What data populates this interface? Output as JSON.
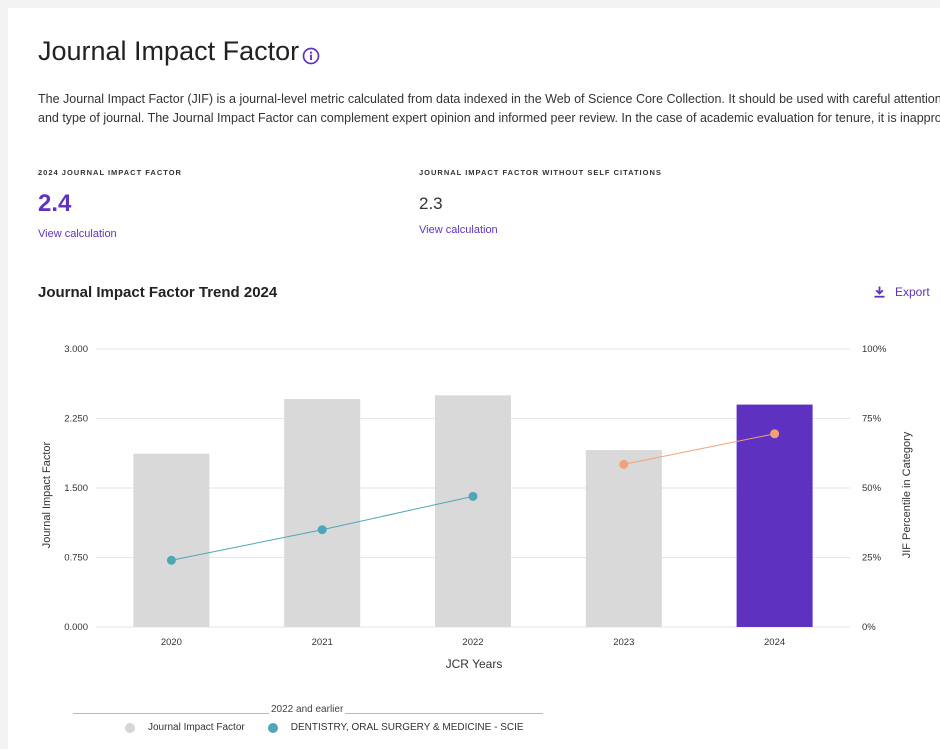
{
  "page": {
    "title": "Journal Impact Factor",
    "description_line1": "The Journal Impact Factor (JIF) is a journal-level metric calculated from data indexed in the Web of Science Core Collection. It should be used with careful attention to",
    "description_line2": "and type of journal. The Journal Impact Factor can complement expert opinion and informed peer review. In the case of academic evaluation for tenure, it is inapprop"
  },
  "metrics": {
    "jif": {
      "label": "2024 JOURNAL IMPACT FACTOR",
      "value": "2.4",
      "link": "View calculation"
    },
    "jif_no_self": {
      "label": "JOURNAL IMPACT FACTOR WITHOUT SELF CITATIONS",
      "value": "2.3",
      "link": "View calculation"
    }
  },
  "chart_section": {
    "title": "Journal Impact Factor Trend 2024",
    "export_label": "Export"
  },
  "legend": {
    "group_label": "2022 and earlier",
    "items": [
      {
        "label": "Journal Impact Factor",
        "color": "#d6d6d6"
      },
      {
        "label": "DENTISTRY, ORAL SURGERY & MEDICINE - SCIE",
        "color": "#4fa6b8"
      }
    ]
  },
  "colors": {
    "accent": "#5e33bf",
    "bar_default": "#d9d9d9",
    "bar_highlight": "#5e31c0",
    "line_early": "#4fa6b8",
    "line_late": "#f4a074"
  },
  "chart_data": {
    "type": "bar",
    "categories": [
      "2020",
      "2021",
      "2022",
      "2023",
      "2024"
    ],
    "series": [
      {
        "name": "Journal Impact Factor",
        "axis": "left",
        "values": [
          1.87,
          2.46,
          2.5,
          1.91,
          2.4
        ]
      },
      {
        "name": "JIF Percentile in Category",
        "axis": "right",
        "values": [
          24,
          35,
          47,
          58.5,
          69.5
        ]
      }
    ],
    "line_segments": [
      {
        "from": 0,
        "to": 2,
        "color_key": "line_early"
      },
      {
        "from": 3,
        "to": 4,
        "color_key": "line_late"
      }
    ],
    "highlight_index": 4,
    "xlabel": "JCR Years",
    "ylabel": "Journal Impact Factor",
    "y2label": "JIF Percentile in Category",
    "ylim": [
      0,
      3
    ],
    "y2lim": [
      0,
      100
    ],
    "yticks": [
      "0.000",
      "0.750",
      "1.500",
      "2.250",
      "3.000"
    ],
    "y2ticks": [
      "0%",
      "25%",
      "50%",
      "75%",
      "100%"
    ]
  }
}
